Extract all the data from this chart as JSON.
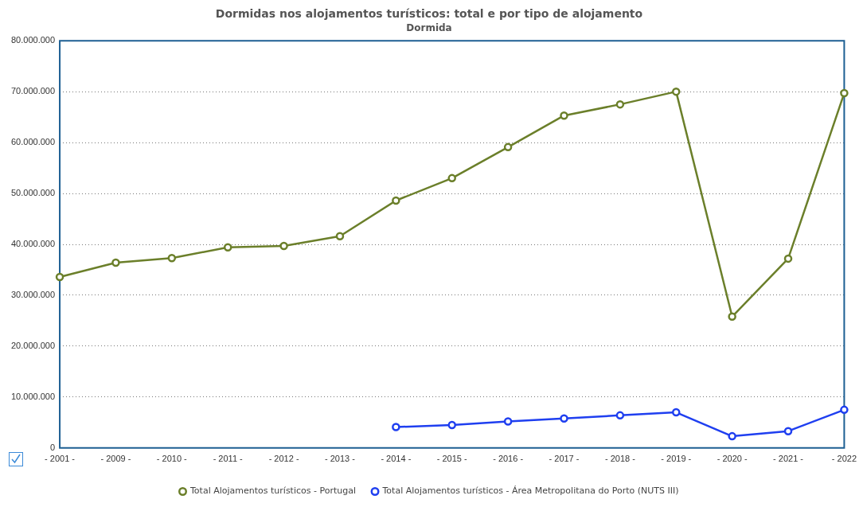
{
  "chart_data": {
    "type": "line",
    "title": "Dormidas nos alojamentos turísticos: total e por tipo de alojamento",
    "subtitle": "Dormida",
    "categories": [
      "- 2001 -",
      "- 2009 -",
      "- 2010 -",
      "- 2011 -",
      "- 2012 -",
      "- 2013 -",
      "- 2014 -",
      "- 2015 -",
      "- 2016 -",
      "- 2017 -",
      "- 2018 -",
      "- 2019 -",
      "- 2020 -",
      "- 2021 -",
      "- 2022"
    ],
    "series": [
      {
        "name": "Total Alojamentos turísticos - Portugal",
        "color": "#6b7f2a",
        "values": [
          33600000,
          36400000,
          37300000,
          39400000,
          39700000,
          41600000,
          48600000,
          53000000,
          59100000,
          65300000,
          67500000,
          70000000,
          25800000,
          37200000,
          69700000
        ]
      },
      {
        "name": "Total Alojamentos turísticos - Área Metropolitana do Porto (NUTS III)",
        "color": "#1f3ff0",
        "values": [
          null,
          null,
          null,
          null,
          null,
          null,
          4100000,
          4500000,
          5200000,
          5800000,
          6400000,
          7000000,
          2300000,
          3300000,
          7500000
        ]
      }
    ],
    "ylim": [
      0,
      80000000
    ],
    "yticks": [
      {
        "value": 0,
        "label": "0"
      },
      {
        "value": 10000000,
        "label": "10.000.000"
      },
      {
        "value": 20000000,
        "label": "20.000.000"
      },
      {
        "value": 30000000,
        "label": "30.000.000"
      },
      {
        "value": 40000000,
        "label": "40.000.000"
      },
      {
        "value": 50000000,
        "label": "50.000.000"
      },
      {
        "value": 60000000,
        "label": "60.000.000"
      },
      {
        "value": 70000000,
        "label": "70.000.000"
      },
      {
        "value": 80000000,
        "label": "80.000.000"
      }
    ],
    "grid": "y",
    "legend": "bottom",
    "marker": "circle",
    "line_style": "solid"
  }
}
